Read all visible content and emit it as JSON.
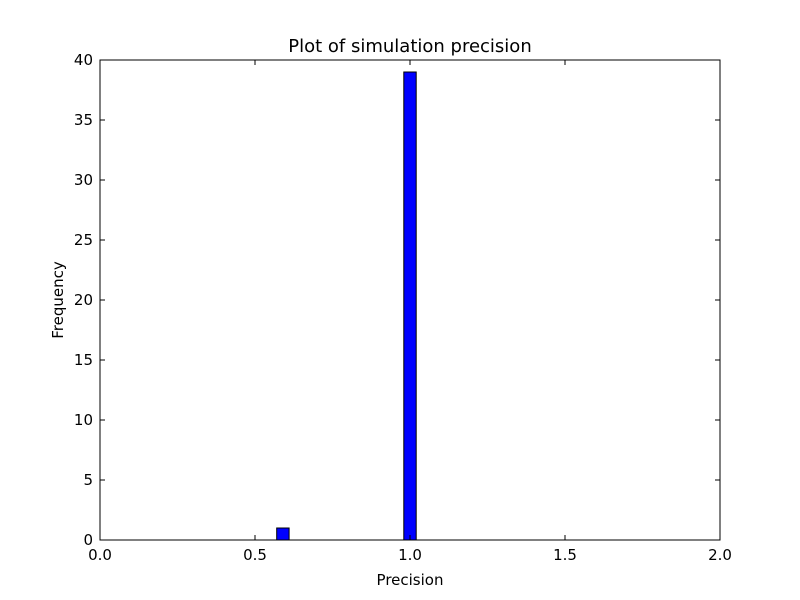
{
  "chart_data": {
    "type": "bar",
    "title": "Plot of simulation precision",
    "xlabel": "Precision",
    "ylabel": "Frequency",
    "xlim": [
      0.0,
      2.0
    ],
    "ylim": [
      0,
      40
    ],
    "xticks": [
      "0.0",
      "0.5",
      "1.0",
      "1.5",
      "2.0"
    ],
    "yticks": [
      "0",
      "5",
      "10",
      "15",
      "20",
      "25",
      "30",
      "35",
      "40"
    ],
    "bin_width": 0.04,
    "bars": [
      {
        "x_start": 0.57,
        "x_end": 0.61,
        "value": 1
      },
      {
        "x_start": 0.98,
        "x_end": 1.02,
        "value": 39
      }
    ],
    "bar_color": "#0000ff",
    "edge_color": "#000000",
    "grid": false
  }
}
